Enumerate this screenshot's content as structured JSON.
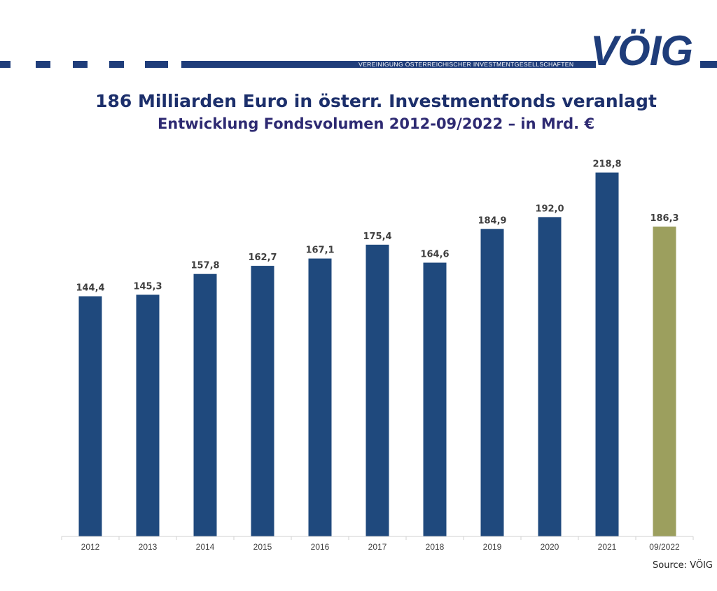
{
  "header": {
    "logo_text": "VÖIG",
    "logo_subtitle": "VEREINIGUNG ÖSTERREICHISCHER INVESTMENTGESELLSCHAFTEN",
    "brand_color": "#1f3d7a"
  },
  "title": "186 Milliarden Euro in österr. Investmentfonds veranlagt",
  "subtitle": "Entwicklung Fondsvolumen 2012-09/2022 – in Mrd. €",
  "source": "Source: VÖIG",
  "chart_data": {
    "type": "bar",
    "categories": [
      "2012",
      "2013",
      "2014",
      "2015",
      "2016",
      "2017",
      "2018",
      "2019",
      "2020",
      "2021",
      "09/2022"
    ],
    "values": [
      144.4,
      145.3,
      157.8,
      162.7,
      167.1,
      175.4,
      164.6,
      184.9,
      192.0,
      218.8,
      186.3
    ],
    "value_labels": [
      "144,4",
      "145,3",
      "157,8",
      "162,7",
      "167,1",
      "175,4",
      "164,6",
      "184,9",
      "192,0",
      "218,8",
      "186,3"
    ],
    "bar_colors": [
      "#1f497d",
      "#1f497d",
      "#1f497d",
      "#1f497d",
      "#1f497d",
      "#1f497d",
      "#1f497d",
      "#1f497d",
      "#1f497d",
      "#1f497d",
      "#9c9f5e"
    ],
    "ylim": [
      0,
      230
    ],
    "xlabel": "",
    "ylabel": "",
    "grid": false,
    "legend": "none"
  }
}
